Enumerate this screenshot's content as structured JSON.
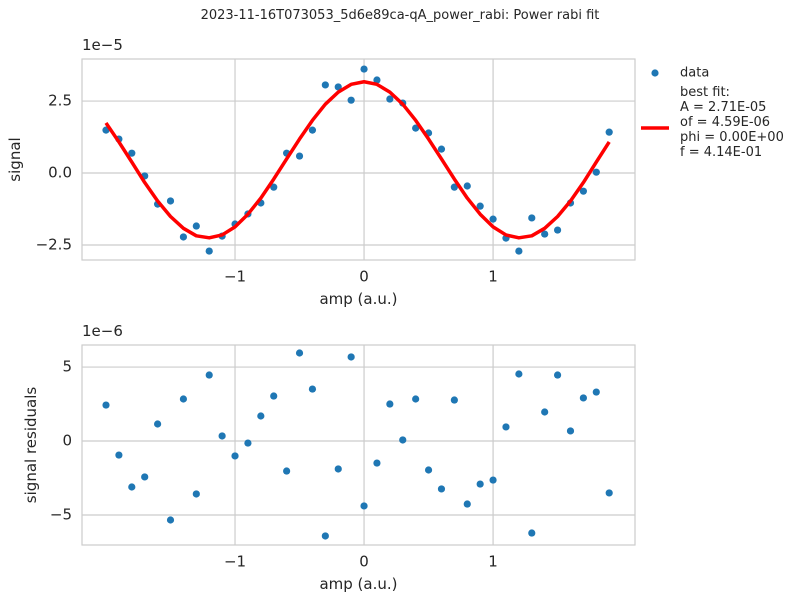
{
  "chart_data": [
    {
      "type": "scatter",
      "title": "2023-11-16T073053_5d6e89ca-qA_power_rabi: Power rabi fit",
      "xlabel": "amp (a.u.)",
      "ylabel": "signal",
      "offset_text": "1e−5",
      "x": [
        -2.0,
        -1.9,
        -1.8,
        -1.7,
        -1.6,
        -1.5,
        -1.4,
        -1.3,
        -1.2,
        -1.1,
        -1.0,
        -0.9,
        -0.8,
        -0.7,
        -0.6,
        -0.5,
        -0.4,
        -0.3,
        -0.2,
        -0.1,
        0.0,
        0.1,
        0.2,
        0.3,
        0.4,
        0.5,
        0.6,
        0.7,
        0.8,
        0.9,
        1.0,
        1.1,
        1.2,
        1.3,
        1.4,
        1.5,
        1.6,
        1.7,
        1.8,
        1.9
      ],
      "series": [
        {
          "name": "data",
          "type": "scatter",
          "color": "#1f77b4",
          "values": [
            1.49,
            1.18,
            0.69,
            -0.1,
            -1.08,
            -0.97,
            -2.22,
            -1.84,
            -2.71,
            -2.19,
            -1.77,
            -1.42,
            -1.04,
            -0.49,
            0.69,
            0.59,
            1.49,
            3.06,
            2.99,
            2.53,
            3.61,
            3.23,
            2.57,
            2.43,
            1.56,
            1.39,
            0.83,
            -0.49,
            -0.45,
            -1.15,
            -1.6,
            -2.26,
            -2.71,
            -1.56,
            -2.12,
            -1.98,
            -1.04,
            -0.63,
            0.03,
            1.42
          ]
        },
        {
          "name": "best fit:\nA = 2.71E-05\nof = 4.59E-06\nphi = 0.00E+00\nf = 4.14E-01",
          "type": "line",
          "color": "#ff0000",
          "values": [
            1.74,
            1.08,
            0.38,
            -0.33,
            -0.97,
            -1.51,
            -1.92,
            -2.18,
            -2.25,
            -2.15,
            -1.87,
            -1.43,
            -0.87,
            -0.21,
            0.49,
            1.18,
            1.83,
            2.39,
            2.81,
            3.08,
            3.17,
            3.08,
            2.81,
            2.39,
            1.83,
            1.18,
            0.49,
            -0.21,
            -0.87,
            -1.43,
            -1.87,
            -2.15,
            -2.25,
            -2.18,
            -1.92,
            -1.51,
            -0.97,
            -0.33,
            0.38,
            1.08
          ]
        }
      ],
      "xlim": [
        -2.186,
        2.1
      ],
      "xticks": [
        {
          "value": -1,
          "label": "−1"
        },
        0,
        1
      ],
      "ylim": [
        -3.02,
        3.96
      ],
      "yticks": [
        {
          "value": -2.5,
          "label": "−2.5"
        },
        {
          "value": 0,
          "label": "0.0"
        },
        2.5
      ],
      "grid": true,
      "legend": "outside right"
    },
    {
      "type": "scatter",
      "xlabel": "amp (a.u.)",
      "ylabel": "signal residuals",
      "offset_text": "1e−6",
      "x": [
        -2.0,
        -1.9,
        -1.8,
        -1.7,
        -1.6,
        -1.5,
        -1.4,
        -1.3,
        -1.2,
        -1.1,
        -1.0,
        -0.9,
        -0.8,
        -0.7,
        -0.6,
        -0.5,
        -0.4,
        -0.3,
        -0.2,
        -0.1,
        0.0,
        0.1,
        0.2,
        0.3,
        0.4,
        0.5,
        0.6,
        0.7,
        0.8,
        0.9,
        1.0,
        1.1,
        1.2,
        1.3,
        1.4,
        1.5,
        1.6,
        1.7,
        1.8,
        1.9
      ],
      "color": "#1f77b4",
      "values": [
        2.43,
        -0.95,
        -3.11,
        -2.43,
        1.15,
        -5.34,
        2.84,
        -3.58,
        4.46,
        0.34,
        -1.01,
        -0.14,
        1.69,
        3.04,
        -2.03,
        5.95,
        3.51,
        -6.42,
        -1.89,
        5.68,
        -4.39,
        -1.49,
        2.5,
        0.07,
        2.84,
        -1.96,
        -3.24,
        2.77,
        -4.26,
        -2.91,
        -2.64,
        0.95,
        4.53,
        -6.22,
        1.96,
        4.46,
        0.68,
        2.91,
        3.31,
        -3.51
      ],
      "xlim": [
        -2.186,
        2.1
      ],
      "xticks": [
        {
          "value": -1,
          "label": "−1"
        },
        0,
        1
      ],
      "ylim": [
        -7.03,
        6.49
      ],
      "yticks": [
        {
          "value": -5,
          "label": "−5"
        },
        0,
        5
      ],
      "grid": true
    }
  ]
}
